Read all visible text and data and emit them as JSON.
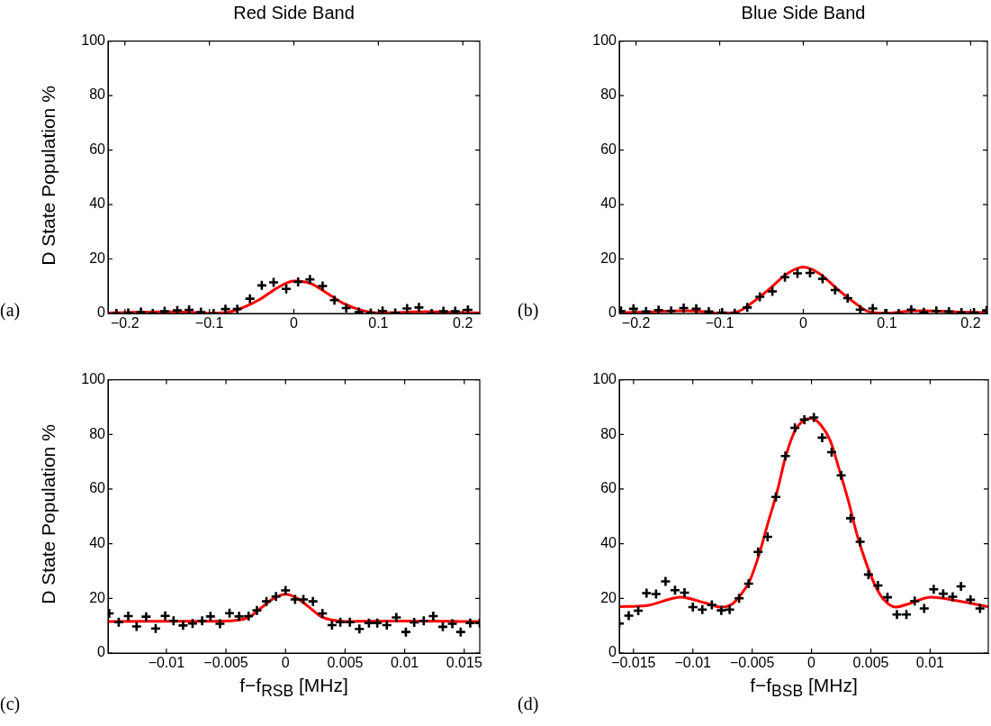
{
  "chart_data": [
    {
      "type": "scatter",
      "title": "Red Side Band",
      "ylabel": "D State Population %",
      "annotations": [
        "(a)"
      ],
      "xlim": [
        -0.22,
        0.22
      ],
      "xticks": [
        -0.2,
        -0.1,
        0,
        0.1,
        0.2
      ],
      "ylim": [
        0,
        100
      ],
      "yticks": [
        0,
        20,
        40,
        60,
        80,
        100
      ],
      "grid": false,
      "legend": false,
      "series": [
        {
          "type": "scatter",
          "marker": "cross",
          "color": "#000000",
          "x": [
            -0.21,
            -0.196,
            -0.181,
            -0.167,
            -0.153,
            -0.138,
            -0.124,
            -0.11,
            -0.095,
            -0.081,
            -0.067,
            -0.052,
            -0.038,
            -0.024,
            -0.009,
            0.005,
            0.019,
            0.034,
            0.048,
            0.062,
            0.077,
            0.091,
            0.105,
            0.12,
            0.134,
            0.148,
            0.163,
            0.177,
            0.191,
            0.206
          ],
          "values": [
            0,
            0.2,
            0.5,
            0,
            0.8,
            1.1,
            1.3,
            0.5,
            0,
            1.6,
            1.6,
            5.4,
            10.3,
            11.4,
            9,
            11.6,
            12.5,
            10.1,
            4.9,
            2,
            0.5,
            0.2,
            0.9,
            0.2,
            1.8,
            2.2,
            0,
            0.8,
            0.8,
            1.3
          ]
        },
        {
          "type": "line",
          "marker": "none",
          "color": "#ff0000",
          "x": [
            -0.22,
            -0.2,
            -0.18,
            -0.16,
            -0.14,
            -0.12,
            -0.1,
            -0.08,
            -0.06,
            -0.04,
            -0.02,
            0,
            0.02,
            0.04,
            0.06,
            0.08,
            0.1,
            0.12,
            0.14,
            0.16,
            0.18,
            0.2,
            0.22
          ],
          "values": [
            0.2,
            0.3,
            0.5,
            0.6,
            0.6,
            0.4,
            0.1,
            0.3,
            2.2,
            5.2,
            9.3,
            11.9,
            11,
            7.3,
            3.5,
            1.2,
            0.2,
            0.3,
            0.6,
            0.7,
            0.5,
            0.3,
            0.2
          ]
        }
      ]
    },
    {
      "type": "scatter",
      "title": "Blue Side Band",
      "annotations": [
        "(b)"
      ],
      "xlim": [
        -0.22,
        0.22
      ],
      "xticks": [
        -0.2,
        -0.1,
        0,
        0.1,
        0.2
      ],
      "ylim": [
        0,
        100
      ],
      "yticks": [
        0,
        20,
        40,
        60,
        80,
        100
      ],
      "grid": false,
      "legend": false,
      "series": [
        {
          "type": "scatter",
          "marker": "cross",
          "color": "#000000",
          "x": [
            -0.218,
            -0.203,
            -0.188,
            -0.173,
            -0.158,
            -0.143,
            -0.128,
            -0.113,
            -0.097,
            -0.082,
            -0.067,
            -0.052,
            -0.037,
            -0.022,
            -0.007,
            0.008,
            0.023,
            0.038,
            0.053,
            0.068,
            0.083,
            0.098,
            0.114,
            0.129,
            0.144,
            0.159,
            0.174,
            0.189,
            0.204,
            0.219
          ],
          "values": [
            0.9,
            1.7,
            0.7,
            1.2,
            0.9,
            2,
            1.7,
            0.7,
            0.3,
            0.1,
            2.2,
            6.1,
            8.1,
            13.3,
            14.7,
            14.9,
            12.7,
            8.6,
            5.6,
            1.4,
            1.8,
            0,
            0,
            1.4,
            0.4,
            0.9,
            0.7,
            0.3,
            0.3,
            1.1
          ]
        },
        {
          "type": "line",
          "marker": "none",
          "color": "#ff0000",
          "x": [
            -0.22,
            -0.2,
            -0.18,
            -0.16,
            -0.14,
            -0.12,
            -0.1,
            -0.08,
            -0.06,
            -0.04,
            -0.02,
            0,
            0.02,
            0.04,
            0.06,
            0.08,
            0.1,
            0.12,
            0.14,
            0.16,
            0.18,
            0.2,
            0.22
          ],
          "values": [
            0.3,
            0.4,
            0.6,
            0.9,
            1,
            0.7,
            0.1,
            0.5,
            4.2,
            9.1,
            14.5,
            17,
            14.5,
            9.1,
            4.2,
            0.5,
            0.1,
            0.7,
            1,
            0.9,
            0.6,
            0.4,
            0.3
          ]
        }
      ]
    },
    {
      "type": "scatter",
      "ylabel": "D State Population %",
      "xlabel": "f−f$_{RSB}$ [MHz]",
      "annotations": [
        "(c)"
      ],
      "xlim": [
        -0.0149,
        0.0163
      ],
      "xticks": [
        -0.01,
        -0.005,
        0,
        0.005,
        0.01,
        0.015
      ],
      "ylim": [
        0,
        100
      ],
      "yticks": [
        0,
        20,
        40,
        60,
        80,
        100
      ],
      "grid": false,
      "legend": false,
      "series": [
        {
          "type": "scatter",
          "marker": "cross",
          "color": "#000000",
          "x": [
            -0.0148,
            -0.014,
            -0.0132,
            -0.0125,
            -0.0117,
            -0.0109,
            -0.0101,
            -0.0094,
            -0.0086,
            -0.0078,
            -0.007,
            -0.0063,
            -0.0055,
            -0.0047,
            -0.0039,
            -0.0031,
            -0.0024,
            -0.0016,
            -0.0008,
            0,
            0.0008,
            0.0015,
            0.0023,
            0.0031,
            0.0039,
            0.0046,
            0.0054,
            0.0062,
            0.007,
            0.0077,
            0.0085,
            0.0093,
            0.0101,
            0.0108,
            0.0116,
            0.0124,
            0.0132,
            0.014,
            0.0147,
            0.0155,
            0.0163
          ],
          "values": [
            14.5,
            11.3,
            13.5,
            9.7,
            13.3,
            9.0,
            13.6,
            11.8,
            10.1,
            10.8,
            11.8,
            13.4,
            10.7,
            14.6,
            13.4,
            13.5,
            15.6,
            18.9,
            20.7,
            22.9,
            19.6,
            19.6,
            18.9,
            14.5,
            10.2,
            11.3,
            11.3,
            8.8,
            11.0,
            11.0,
            10.2,
            13.0,
            7.7,
            11.2,
            11.8,
            13.5,
            9.6,
            10.7,
            7.7,
            11.0,
            11.0
          ]
        },
        {
          "type": "line",
          "marker": "none",
          "color": "#ff0000",
          "x": [
            -0.0149,
            -0.01,
            -0.006,
            -0.004,
            -0.003,
            -0.002,
            -0.001,
            0,
            0.001,
            0.002,
            0.003,
            0.004,
            0.005,
            0.006,
            0.01,
            0.0163
          ],
          "values": [
            11.5,
            11.6,
            11.6,
            12.0,
            13.3,
            16.7,
            20.0,
            21.5,
            20.0,
            16.7,
            13.3,
            12.0,
            11.5,
            11.6,
            11.7,
            11.5
          ]
        }
      ]
    },
    {
      "type": "scatter",
      "xlabel": "f−f$_{BSB}$ [MHz]",
      "annotations": [
        "(d)"
      ],
      "xlim": [
        -0.0162,
        0.0149
      ],
      "xticks": [
        -0.015,
        -0.01,
        -0.005,
        0,
        0.005,
        0.01
      ],
      "ylim": [
        0,
        100
      ],
      "yticks": [
        0,
        20,
        40,
        60,
        80,
        100
      ],
      "grid": false,
      "legend": false,
      "series": [
        {
          "type": "scatter",
          "marker": "cross",
          "color": "#000000",
          "x": [
            -0.0162,
            -0.0154,
            -0.0146,
            -0.0139,
            -0.0131,
            -0.0123,
            -0.0115,
            -0.0107,
            -0.01,
            -0.0092,
            -0.0084,
            -0.0076,
            -0.0069,
            -0.0061,
            -0.0053,
            -0.0045,
            -0.0037,
            -0.003,
            -0.0022,
            -0.0014,
            -0.0006,
            0.0002,
            0.0009,
            0.0017,
            0.0025,
            0.0033,
            0.0041,
            0.0048,
            0.0056,
            0.0064,
            0.0072,
            0.008,
            0.0087,
            0.0095,
            0.0103,
            0.0111,
            0.0119,
            0.0126,
            0.0134,
            0.0142
          ],
          "values": [
            10.8,
            13.7,
            15.5,
            21.9,
            21.6,
            26.2,
            23.0,
            22.1,
            16.8,
            15.9,
            17.6,
            15.6,
            15.9,
            20.0,
            25.4,
            37.0,
            42.5,
            57.1,
            72.1,
            82.4,
            85.4,
            86.2,
            78.8,
            73.5,
            65.0,
            49.3,
            40.7,
            28.7,
            24.7,
            20.4,
            14.1,
            14.1,
            19.0,
            16.3,
            23.3,
            21.7,
            20.6,
            24.4,
            19.5,
            16.3
          ]
        },
        {
          "type": "line",
          "marker": "none",
          "color": "#ff0000",
          "x": [
            -0.0161,
            -0.014,
            -0.011,
            -0.009,
            -0.0076,
            -0.0067,
            -0.006,
            -0.0052,
            -0.0044,
            -0.0037,
            -0.0029,
            -0.0022,
            -0.0014,
            -0.0007,
            0,
            0.0008,
            0.0016,
            0.0023,
            0.0031,
            0.0038,
            0.0046,
            0.0054,
            0.0061,
            0.0071,
            0.0081,
            0.0101,
            0.0124,
            0.0148
          ],
          "values": [
            17.0,
            17.3,
            20.4,
            18.4,
            16.8,
            17.9,
            21.1,
            26.5,
            36.3,
            47.1,
            59,
            71.5,
            81.3,
            85.0,
            85.9,
            83.4,
            77.5,
            67.7,
            55.8,
            43.9,
            33,
            24.4,
            19.5,
            16.8,
            17.9,
            20.4,
            19,
            17
          ]
        }
      ]
    }
  ]
}
